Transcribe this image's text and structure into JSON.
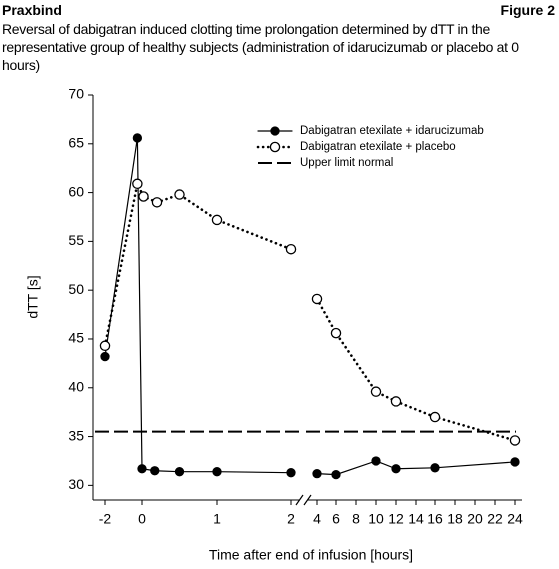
{
  "chart_data": {
    "type": "line",
    "title": "Praxbind",
    "figure_label": "Figure 2",
    "subtitle": "Reversal of dabigatran induced clotting time prolongation determined by dTT in the representative group of healthy subjects (administration of idarucizumab or placebo at 0 hours)",
    "x_label": "Time after end of infusion [hours]",
    "y_label": "dTT [s]",
    "ylim": [
      28.5,
      70
    ],
    "yticks": [
      30,
      35,
      40,
      45,
      50,
      55,
      60,
      65,
      70
    ],
    "xticks": [
      -2,
      0,
      1,
      2,
      4,
      6,
      8,
      10,
      12,
      14,
      16,
      18,
      20,
      22,
      24
    ],
    "series": [
      {
        "name": "Dabigatran etexilate + idarucizumab",
        "color": "#000000",
        "line_style": "solid",
        "marker": "filled",
        "x": [
          -2,
          -0.25,
          0,
          0.17,
          0.5,
          1,
          2,
          null,
          4,
          6,
          10,
          12,
          16,
          24
        ],
        "values": [
          43.2,
          65.6,
          31.7,
          31.5,
          31.4,
          31.4,
          31.3,
          null,
          31.2,
          31.1,
          32.5,
          31.7,
          31.8,
          32.4
        ]
      },
      {
        "name": "Dabigatran etexilate + placebo",
        "color": "#000000",
        "line_style": "dotted",
        "marker": "open",
        "x": [
          -2,
          -0.25,
          0.02,
          0.2,
          0.5,
          1,
          2,
          null,
          4,
          6,
          10,
          12,
          16,
          24
        ],
        "values": [
          44.3,
          60.9,
          59.6,
          59.0,
          59.8,
          57.2,
          54.2,
          null,
          49.1,
          45.6,
          39.6,
          38.6,
          37.0,
          34.6
        ]
      }
    ],
    "reference_line": {
      "name": "Upper limit normal",
      "value": 35.5,
      "line_style": "dashed",
      "color": "#000000"
    }
  }
}
